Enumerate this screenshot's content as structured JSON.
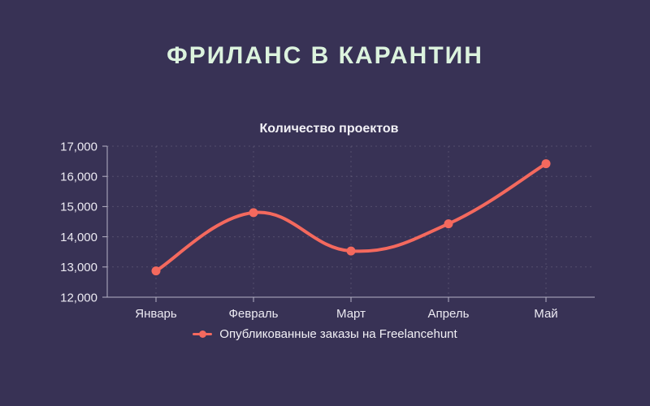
{
  "page": {
    "title": "ФРИЛАНС В КАРАНТИН",
    "background_color": "#383255",
    "title_color": "#dcf3de"
  },
  "chart_data": {
    "type": "line",
    "title": "Количество проектов",
    "categories": [
      "Январь",
      "Февраль",
      "Март",
      "Апрель",
      "Май"
    ],
    "series": [
      {
        "name": "Опубликованные заказы на Freelancehunt",
        "values": [
          12870,
          14800,
          13530,
          14430,
          16420
        ],
        "color": "#f4695e"
      }
    ],
    "xlabel": "",
    "ylabel": "",
    "ylim": [
      12000,
      17000
    ],
    "y_step": 1000,
    "y_tick_labels": [
      "12,000",
      "13,000",
      "14,000",
      "15,000",
      "16,000",
      "17,000"
    ],
    "grid": "dashed",
    "grid_color": "rgba(255,255,255,0.14)",
    "axis_color": "#b6b3c6",
    "tick_text_color": "#eceaf2",
    "legend_position": "bottom",
    "line_style": "smooth"
  }
}
